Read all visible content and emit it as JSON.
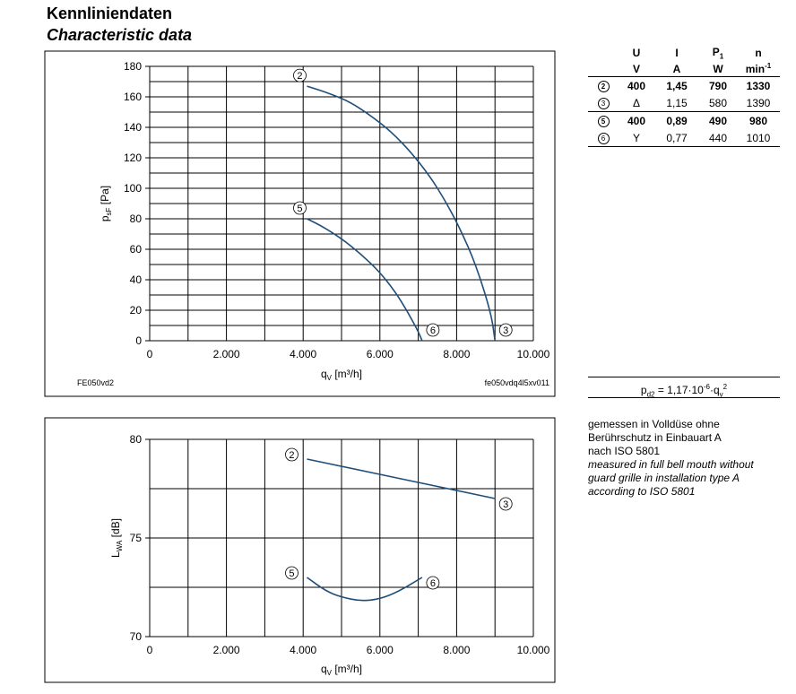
{
  "title_de": "Kennliniendaten",
  "title_en": "Characteristic data",
  "motor_table": {
    "headers": [
      "",
      "U",
      "I",
      "P1",
      "n"
    ],
    "units": [
      "",
      "V",
      "A",
      "W",
      "min-1"
    ],
    "rows": [
      {
        "curve": "2",
        "U": "400",
        "I": "1,45",
        "P": "790",
        "n": "1330",
        "bold": true
      },
      {
        "curve": "3",
        "U": "Δ",
        "I": "1,15",
        "P": "580",
        "n": "1390",
        "bold": false
      },
      {
        "curve": "5",
        "U": "400",
        "I": "0,89",
        "P": "490",
        "n": "980",
        "bold": true
      },
      {
        "curve": "6",
        "U": "Y",
        "I": "0,77",
        "P": "440",
        "n": "1010",
        "bold": false
      }
    ]
  },
  "formula": "pd2 = 1,17·10-6·qv2",
  "note": {
    "de": [
      "gemessen in Volldüse ohne",
      "Berührschutz in Einbauart A",
      "nach ISO 5801"
    ],
    "en": [
      "measured in full bell mouth without",
      "guard grille in installation type A",
      "according to ISO 5801"
    ]
  },
  "chart_data": [
    {
      "type": "line",
      "xlabel": "qV [m³/h]",
      "ylabel": "psF [Pa]",
      "xlim": [
        0,
        10000
      ],
      "ylim": [
        0,
        180
      ],
      "xticks": [
        "0",
        "2.000",
        "4.000",
        "6.000",
        "8.000",
        "10.000"
      ],
      "yticks": [
        "0",
        "20",
        "40",
        "60",
        "80",
        "100",
        "120",
        "140",
        "160",
        "180"
      ],
      "grid": true,
      "footer_left": "FE050vd2",
      "footer_right": "fe050vdq4l5xv011",
      "series": [
        {
          "name": "2",
          "x": [
            4100,
            4600,
            5200,
            5800,
            6300,
            6800,
            7300,
            7700,
            8100,
            8500,
            8900,
            9000
          ],
          "y": [
            167,
            163,
            157,
            147,
            137,
            124,
            108,
            92,
            73,
            50,
            18,
            0
          ]
        },
        {
          "name": "5",
          "x": [
            4100,
            4500,
            5000,
            5500,
            6000,
            6400,
            6700,
            7000,
            7100
          ],
          "y": [
            80,
            75,
            67,
            57,
            45,
            32,
            20,
            6,
            0
          ]
        }
      ],
      "end_labels": [
        {
          "name": "3",
          "x": 9000,
          "y": 0
        },
        {
          "name": "6",
          "x": 7100,
          "y": 0
        }
      ]
    },
    {
      "type": "line",
      "xlabel": "qV [m³/h]",
      "ylabel": "LWA [dB]",
      "xlim": [
        0,
        10000
      ],
      "ylim": [
        70,
        80
      ],
      "xticks": [
        "0",
        "2.000",
        "4.000",
        "6.000",
        "8.000",
        "10.000"
      ],
      "yticks": [
        "70",
        "75",
        "80"
      ],
      "grid": true,
      "series": [
        {
          "name": "2",
          "x": [
            4100,
            9000
          ],
          "y": [
            79,
            77
          ]
        },
        {
          "name": "5",
          "x": [
            4100,
            4600,
            5000,
            5500,
            6000,
            6500,
            7100
          ],
          "y": [
            73,
            72.3,
            72,
            71.8,
            71.9,
            72.3,
            73
          ]
        }
      ],
      "end_labels": [
        {
          "name": "3",
          "x": 9000,
          "y": 77
        },
        {
          "name": "6",
          "x": 7100,
          "y": 73
        }
      ]
    }
  ]
}
